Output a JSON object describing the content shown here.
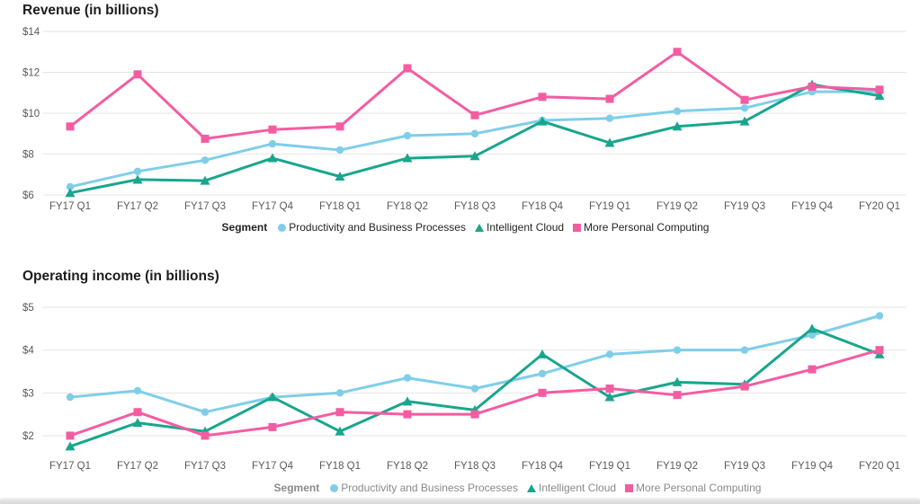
{
  "chart_data": [
    {
      "type": "line",
      "title": "Revenue (in billions)",
      "legend_title": "Segment",
      "legend_position": "bottom-center",
      "grid": true,
      "categories": [
        "FY17 Q1",
        "FY17 Q2",
        "FY17 Q3",
        "FY17 Q4",
        "FY18 Q1",
        "FY18 Q2",
        "FY18 Q3",
        "FY18 Q4",
        "FY19 Q1",
        "FY19 Q2",
        "FY19 Q3",
        "FY19 Q4",
        "FY20 Q1"
      ],
      "ylim": [
        6,
        14
      ],
      "y_ticks": [
        6,
        8,
        10,
        12,
        14
      ],
      "y_tick_labels": [
        "$6",
        "$8",
        "$10",
        "$12",
        "$14"
      ],
      "series": [
        {
          "name": "Productivity and Business Processes",
          "marker": "circle",
          "color": "#7FCEE9",
          "values": [
            6.4,
            7.15,
            7.7,
            8.5,
            8.2,
            8.9,
            9.0,
            9.65,
            9.75,
            10.1,
            10.25,
            11.05,
            11.05
          ]
        },
        {
          "name": "Intelligent Cloud",
          "marker": "triangle",
          "color": "#18A68D",
          "values": [
            6.1,
            6.75,
            6.7,
            7.8,
            6.9,
            7.8,
            7.9,
            9.6,
            8.55,
            9.35,
            9.6,
            11.4,
            10.85
          ]
        },
        {
          "name": "More Personal Computing",
          "marker": "square",
          "color": "#F45CA2",
          "values": [
            9.35,
            11.9,
            8.75,
            9.2,
            9.35,
            12.2,
            9.9,
            10.8,
            10.7,
            13.0,
            10.65,
            11.3,
            11.15
          ]
        }
      ]
    },
    {
      "type": "line",
      "title": "Operating income (in billions)",
      "legend_title": "Segment",
      "legend_position": "bottom-center",
      "grid": true,
      "categories": [
        "FY17 Q1",
        "FY17 Q2",
        "FY17 Q3",
        "FY17 Q4",
        "FY18 Q1",
        "FY18 Q2",
        "FY18 Q3",
        "FY18 Q4",
        "FY19 Q1",
        "FY19 Q2",
        "FY19 Q3",
        "FY19 Q4",
        "FY20 Q1"
      ],
      "ylim": [
        1.6,
        5
      ],
      "y_ticks": [
        2,
        3,
        4,
        5
      ],
      "y_tick_labels": [
        "$2",
        "$3",
        "$4",
        "$5"
      ],
      "series": [
        {
          "name": "Productivity and Business Processes",
          "marker": "circle",
          "color": "#7FCEE9",
          "values": [
            2.9,
            3.05,
            2.55,
            2.9,
            3.0,
            3.35,
            3.1,
            3.45,
            3.9,
            4.0,
            4.0,
            4.35,
            4.8
          ]
        },
        {
          "name": "Intelligent Cloud",
          "marker": "triangle",
          "color": "#18A68D",
          "values": [
            1.75,
            2.3,
            2.1,
            2.9,
            2.1,
            2.8,
            2.6,
            3.9,
            2.9,
            3.25,
            3.2,
            4.5,
            3.9
          ]
        },
        {
          "name": "More Personal Computing",
          "marker": "square",
          "color": "#F45CA2",
          "values": [
            2.0,
            2.55,
            2.0,
            2.2,
            2.55,
            2.5,
            2.5,
            3.0,
            3.1,
            2.95,
            3.15,
            3.55,
            4.0
          ]
        }
      ]
    }
  ],
  "style_colors": {
    "grid_line": "#E6E6E6",
    "axis_label": "#5A5A5A",
    "title_text": "#1D1D1D",
    "legend_text_top": "#252423",
    "legend_text_bottom": "#8A8A8A"
  }
}
